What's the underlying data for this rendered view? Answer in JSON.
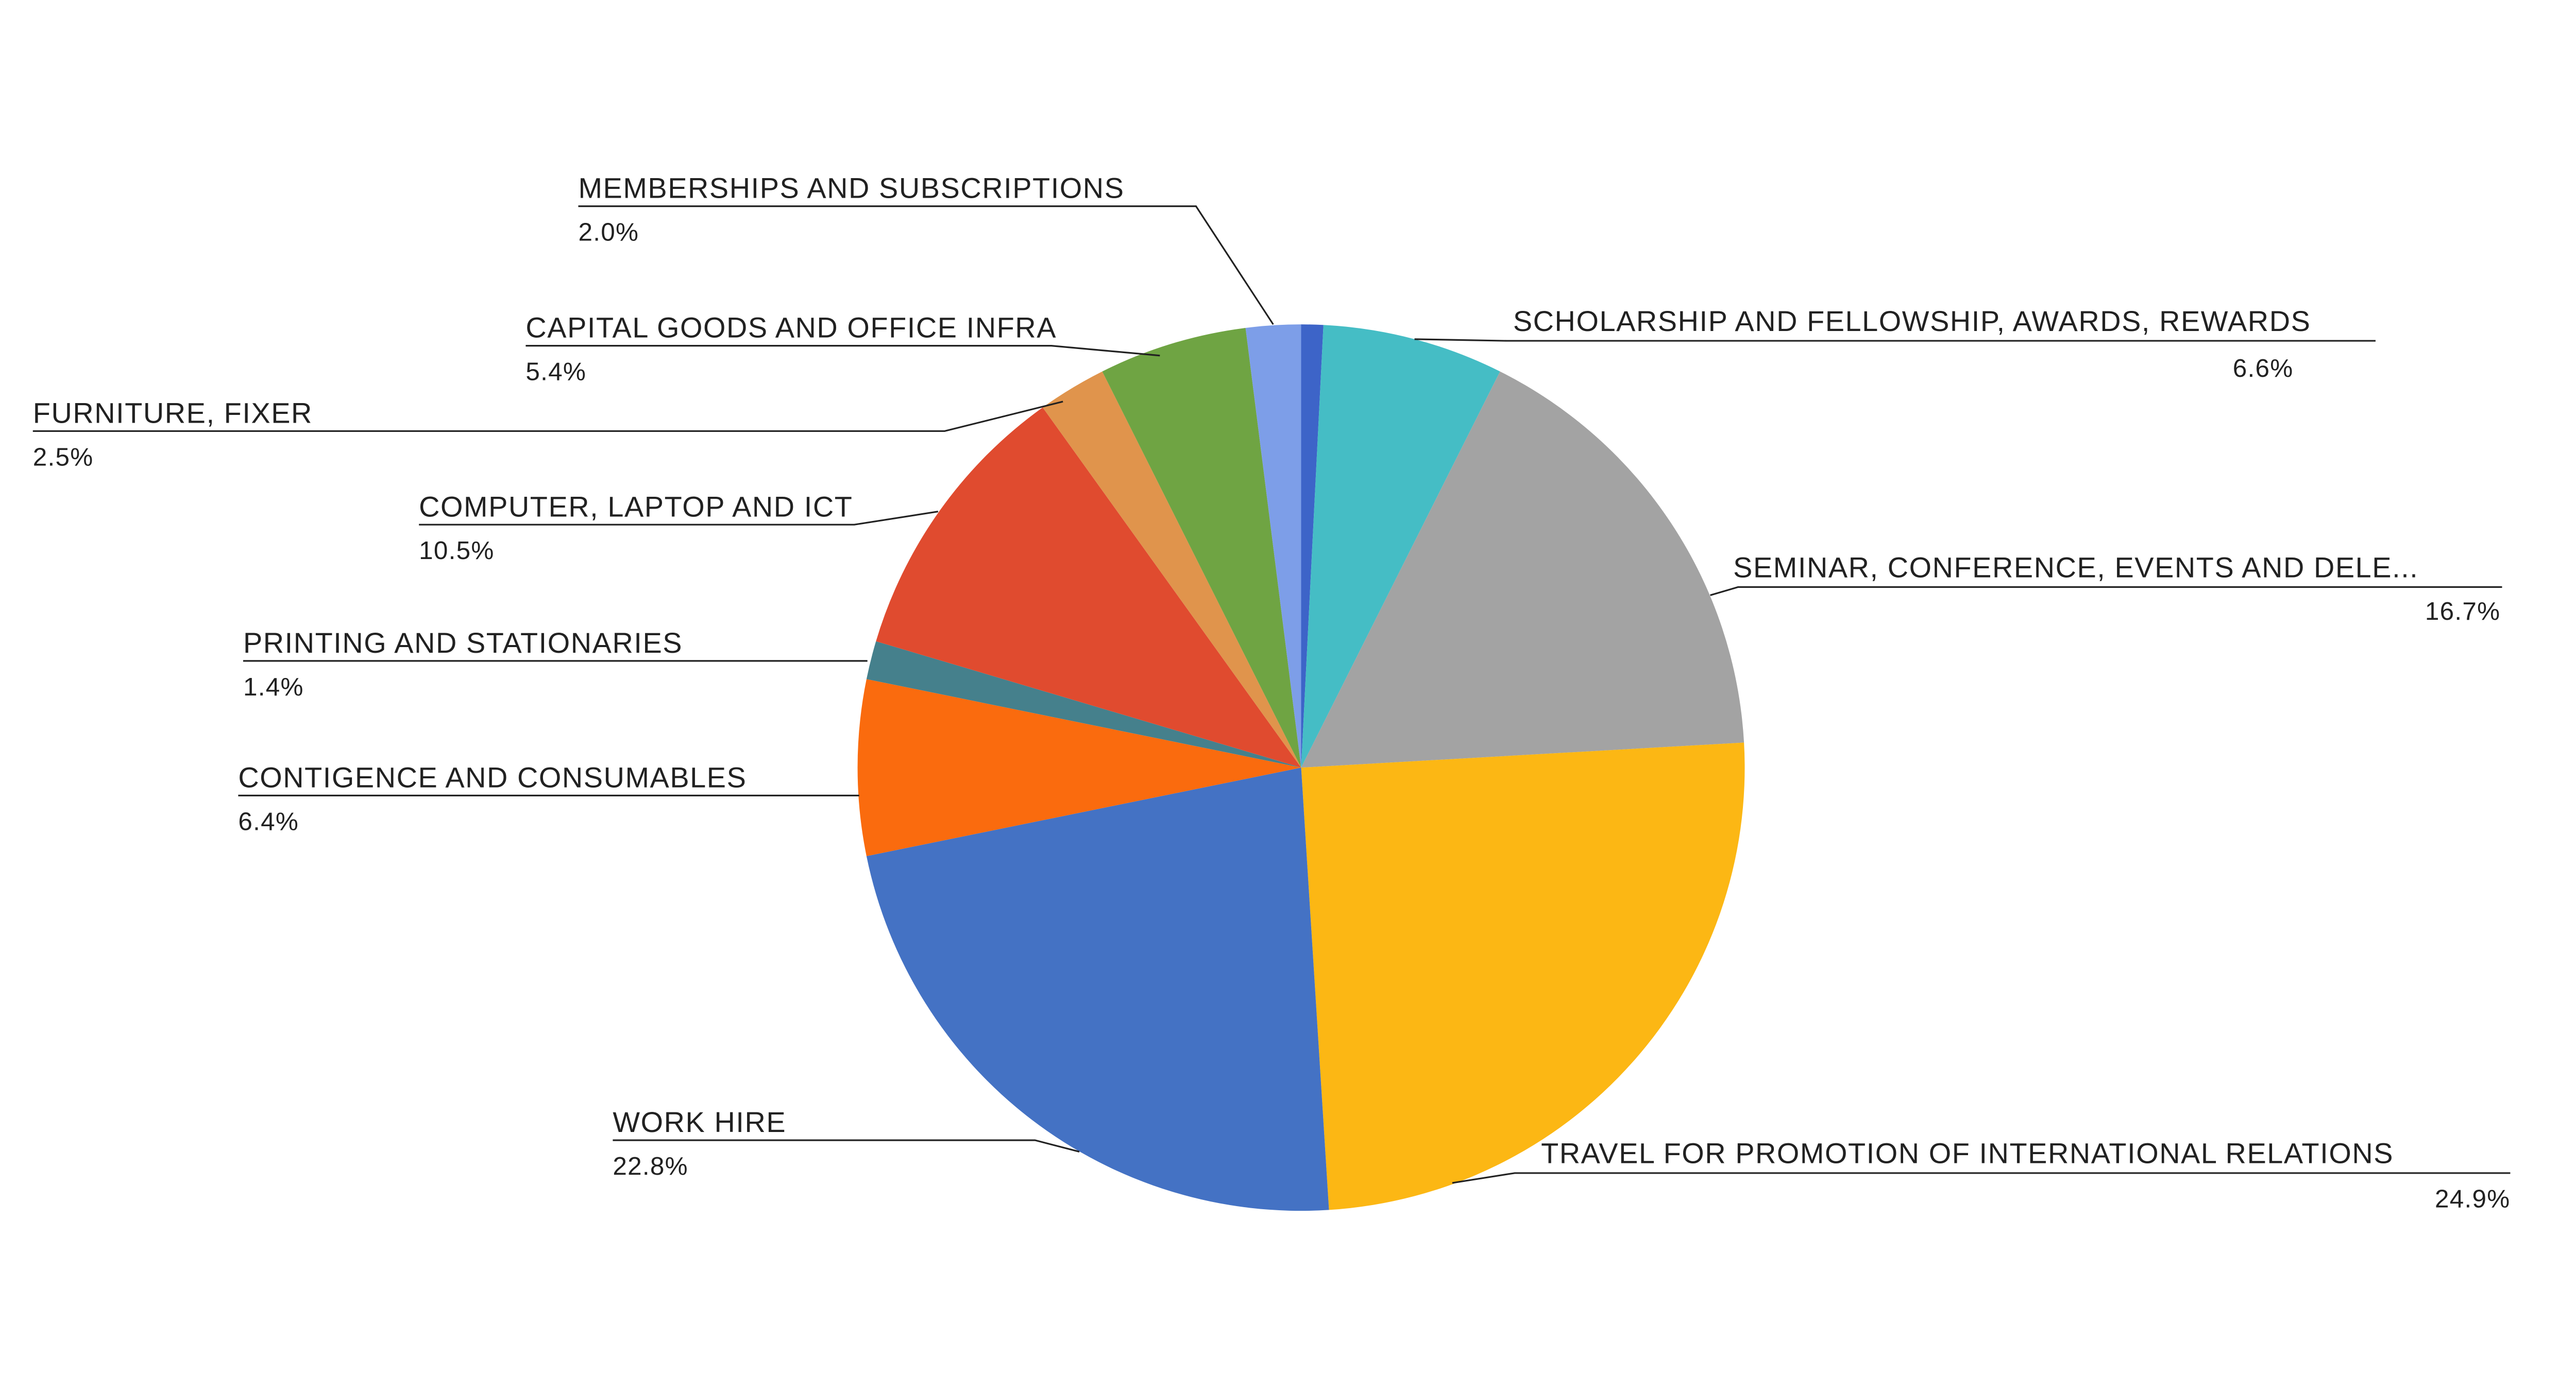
{
  "chart_data": {
    "type": "pie",
    "title": "",
    "background": "#ffffff",
    "text_color": "#212121",
    "leader_line_color": "#212121",
    "start_angle": "12 o'clock",
    "direction": "clockwise",
    "legend_position": "none",
    "labels_style": "callout labels with percentage values",
    "slices": [
      {
        "id": "other",
        "label": "",
        "pct_text": "",
        "value_pct": 0.8,
        "color": "#3D64C8",
        "labeled": false
      },
      {
        "id": "scholarship",
        "label": "SCHOLARSHIP AND FELLOWSHIP, AWARDS, REWARDS",
        "pct_text": "6.6%",
        "value_pct": 6.6,
        "color": "#45BDC5",
        "labeled": true
      },
      {
        "id": "seminar",
        "label": "SEMINAR, CONFERENCE, EVENTS AND DELE...",
        "pct_text": "16.7%",
        "value_pct": 16.7,
        "color": "#A3A3A3",
        "labeled": true
      },
      {
        "id": "travel",
        "label": "TRAVEL FOR PROMOTION OF INTERNATIONAL RELATIONS",
        "pct_text": "24.9%",
        "value_pct": 24.9,
        "color": "#FCB714",
        "labeled": true
      },
      {
        "id": "work-hire",
        "label": "WORK HIRE",
        "pct_text": "22.8%",
        "value_pct": 22.8,
        "color": "#4472C4",
        "labeled": true
      },
      {
        "id": "contigence",
        "label": "CONTIGENCE AND CONSUMABLES",
        "pct_text": "6.4%",
        "value_pct": 6.4,
        "color": "#FA6B0E",
        "labeled": true
      },
      {
        "id": "printing",
        "label": "PRINTING AND STATIONARIES",
        "pct_text": "1.4%",
        "value_pct": 1.4,
        "color": "#45808C",
        "labeled": true
      },
      {
        "id": "computer",
        "label": "COMPUTER, LAPTOP AND ICT",
        "pct_text": "10.5%",
        "value_pct": 10.5,
        "color": "#E04B2F",
        "labeled": true
      },
      {
        "id": "furniture",
        "label": "FURNITURE, FIXER",
        "pct_text": "2.5%",
        "value_pct": 2.5,
        "color": "#E0944C",
        "labeled": true
      },
      {
        "id": "capital",
        "label": "CAPITAL GOODS AND OFFICE INFRA",
        "pct_text": "5.4%",
        "value_pct": 5.4,
        "color": "#6FA443",
        "labeled": true
      },
      {
        "id": "memberships",
        "label": "MEMBERSHIPS AND SUBSCRIPTIONS",
        "pct_text": "2.0%",
        "value_pct": 2.0,
        "color": "#7D9EE8",
        "labeled": true
      }
    ]
  }
}
